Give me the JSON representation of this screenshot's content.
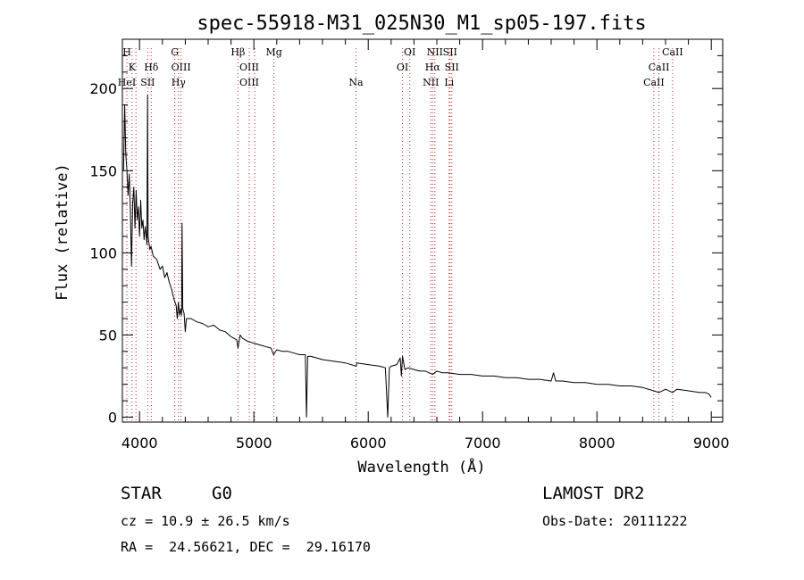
{
  "chart_data": {
    "type": "line",
    "title": "spec-55918-M31_025N30_M1_sp05-197.fits",
    "xlabel": "Wavelength (Å)",
    "ylabel": "Flux (relative)",
    "xlim": [
      3850,
      9100
    ],
    "ylim": [
      -3,
      230
    ],
    "x_ticks": [
      4000,
      5000,
      6000,
      7000,
      8000,
      9000
    ],
    "y_ticks": [
      0,
      50,
      100,
      150,
      200
    ],
    "grid": false,
    "series": [
      {
        "points": [
          [
            3860,
            150
          ],
          [
            3870,
            190
          ],
          [
            3880,
            160
          ],
          [
            3890,
            150
          ],
          [
            3900,
            135
          ],
          [
            3910,
            148
          ],
          [
            3920,
            125
          ],
          [
            3930,
            92
          ],
          [
            3940,
            130
          ],
          [
            3950,
            140
          ],
          [
            3960,
            115
          ],
          [
            3970,
            138
          ],
          [
            3980,
            120
          ],
          [
            3990,
            128
          ],
          [
            4000,
            110
          ],
          [
            4010,
            132
          ],
          [
            4020,
            115
          ],
          [
            4030,
            120
          ],
          [
            4040,
            108
          ],
          [
            4050,
            116
          ],
          [
            4065,
            105
          ],
          [
            4070,
            196
          ],
          [
            4075,
            110
          ],
          [
            4090,
            102
          ],
          [
            4100,
            104
          ],
          [
            4120,
            98
          ],
          [
            4150,
            96
          ],
          [
            4180,
            90
          ],
          [
            4200,
            92
          ],
          [
            4220,
            85
          ],
          [
            4240,
            88
          ],
          [
            4260,
            82
          ],
          [
            4280,
            78
          ],
          [
            4300,
            72
          ],
          [
            4320,
            68
          ],
          [
            4330,
            60
          ],
          [
            4340,
            70
          ],
          [
            4350,
            62
          ],
          [
            4360,
            66
          ],
          [
            4368,
            62
          ],
          [
            4372,
            118
          ],
          [
            4378,
            66
          ],
          [
            4390,
            63
          ],
          [
            4400,
            52
          ],
          [
            4410,
            60
          ],
          [
            4450,
            60
          ],
          [
            4500,
            58
          ],
          [
            4550,
            57
          ],
          [
            4600,
            55
          ],
          [
            4650,
            56
          ],
          [
            4700,
            53
          ],
          [
            4750,
            52
          ],
          [
            4800,
            49
          ],
          [
            4850,
            47
          ],
          [
            4861,
            42
          ],
          [
            4880,
            50
          ],
          [
            4900,
            48
          ],
          [
            4950,
            46
          ],
          [
            5000,
            45
          ],
          [
            5050,
            44
          ],
          [
            5100,
            43
          ],
          [
            5150,
            42
          ],
          [
            5172,
            38
          ],
          [
            5200,
            41
          ],
          [
            5250,
            40
          ],
          [
            5300,
            40
          ],
          [
            5350,
            39
          ],
          [
            5400,
            38
          ],
          [
            5450,
            38
          ],
          [
            5460,
            0
          ],
          [
            5470,
            37
          ],
          [
            5500,
            37
          ],
          [
            5600,
            35
          ],
          [
            5700,
            34
          ],
          [
            5800,
            33
          ],
          [
            5895,
            31
          ],
          [
            5900,
            33
          ],
          [
            6000,
            32
          ],
          [
            6100,
            31
          ],
          [
            6150,
            30
          ],
          [
            6170,
            0
          ],
          [
            6185,
            30
          ],
          [
            6200,
            31
          ],
          [
            6250,
            32
          ],
          [
            6280,
            36
          ],
          [
            6290,
            25
          ],
          [
            6300,
            37
          ],
          [
            6320,
            29
          ],
          [
            6350,
            30
          ],
          [
            6400,
            29
          ],
          [
            6450,
            28
          ],
          [
            6500,
            28
          ],
          [
            6563,
            26
          ],
          [
            6600,
            28
          ],
          [
            6650,
            27
          ],
          [
            6700,
            27
          ],
          [
            6800,
            26
          ],
          [
            6900,
            26
          ],
          [
            7000,
            25
          ],
          [
            7100,
            25
          ],
          [
            7200,
            24
          ],
          [
            7300,
            24
          ],
          [
            7400,
            23
          ],
          [
            7500,
            23
          ],
          [
            7600,
            22
          ],
          [
            7620,
            27
          ],
          [
            7640,
            22
          ],
          [
            7700,
            22
          ],
          [
            7800,
            21
          ],
          [
            7900,
            21
          ],
          [
            8000,
            20
          ],
          [
            8100,
            20
          ],
          [
            8200,
            19
          ],
          [
            8300,
            19
          ],
          [
            8400,
            18
          ],
          [
            8498,
            16
          ],
          [
            8542,
            15
          ],
          [
            8600,
            17
          ],
          [
            8662,
            15
          ],
          [
            8700,
            17
          ],
          [
            8800,
            16
          ],
          [
            8900,
            15
          ],
          [
            8950,
            15
          ],
          [
            8980,
            14
          ],
          [
            9000,
            12
          ]
        ]
      }
    ],
    "lines": [
      {
        "label": "H",
        "wl": 3889,
        "row": 0
      },
      {
        "label": "K",
        "wl": 3934,
        "row": 1
      },
      {
        "label": "HeI",
        "wl": 3889,
        "row": 2
      },
      {
        "label": "Hδ",
        "wl": 4102,
        "row": 1
      },
      {
        "label": "SII",
        "wl": 4072,
        "row": 2
      },
      {
        "label": "G",
        "wl": 4308,
        "row": 0
      },
      {
        "label": "OIII",
        "wl": 4363,
        "row": 1
      },
      {
        "label": "Hγ",
        "wl": 4341,
        "row": 2
      },
      {
        "label": "Hβ",
        "wl": 4861,
        "row": 0
      },
      {
        "label": "OIII",
        "wl": 4959,
        "row": 1
      },
      {
        "label": "OIII",
        "wl": 4959,
        "row": 2
      },
      {
        "label": "Mg",
        "wl": 5175,
        "row": 0
      },
      {
        "label": "Na",
        "wl": 5893,
        "row": 2
      },
      {
        "label": "OI",
        "wl": 6363,
        "row": 0
      },
      {
        "label": "OI",
        "wl": 6300,
        "row": 1
      },
      {
        "label": "NII",
        "wl": 6583,
        "row": 0
      },
      {
        "label": "SII",
        "wl": 6716,
        "row": 0
      },
      {
        "label": "Hα",
        "wl": 6563,
        "row": 1
      },
      {
        "label": "SII",
        "wl": 6731,
        "row": 1
      },
      {
        "label": "NII",
        "wl": 6548,
        "row": 2
      },
      {
        "label": "Li",
        "wl": 6708,
        "row": 2
      },
      {
        "label": "CaII",
        "wl": 8662,
        "row": 0
      },
      {
        "label": "CaII",
        "wl": 8542,
        "row": 1
      },
      {
        "label": "CaII",
        "wl": 8498,
        "row": 2
      }
    ],
    "marker_lines": [
      3889,
      3934,
      3969,
      4072,
      4102,
      4308,
      4341,
      4363,
      4861,
      4959,
      5007,
      5175,
      5893,
      6300,
      6363,
      6548,
      6563,
      6583,
      6708,
      6716,
      6731,
      8498,
      8542,
      8662
    ]
  },
  "info": {
    "class": "STAR",
    "subclass": "G0",
    "survey": "LAMOST DR2",
    "cz": "cz = 10.9 ± 26.5 km/s",
    "obs_date": "Obs-Date: 20111222",
    "coords": "RA =  24.56621, DEC =  29.16170"
  },
  "colors": {
    "marker": "#cc2222",
    "spectrum": "#000000"
  }
}
